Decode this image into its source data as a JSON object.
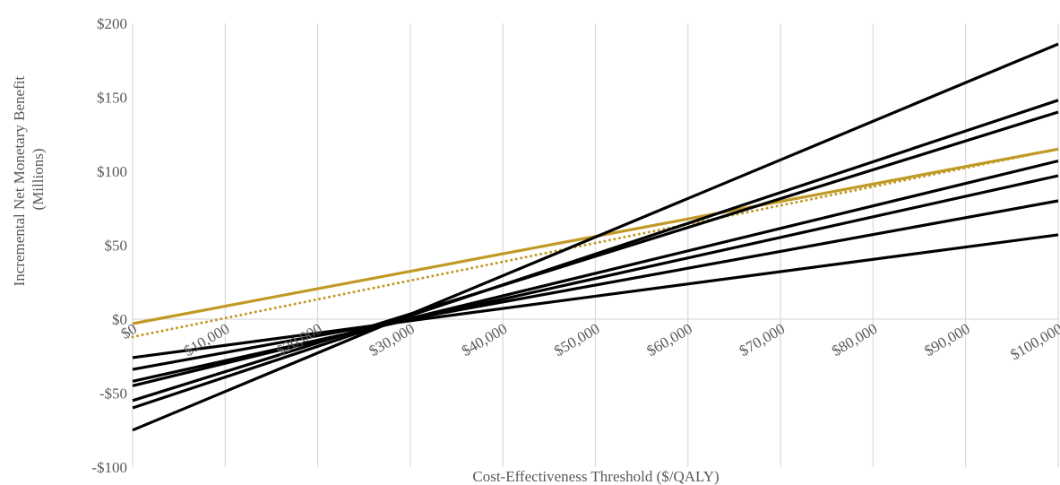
{
  "chart_data": {
    "type": "line",
    "xlabel": "Cost-Effectiveness Threshold ($/QALY)",
    "ylabel": "Incremental Net Monetary Benefit (Millions)",
    "ylabel_lines": [
      "Incremental Net Monetary Benefit",
      "(Millions)"
    ],
    "xlim": [
      0,
      100000
    ],
    "ylim": [
      -100,
      200
    ],
    "x_ticks": [
      {
        "value": 0,
        "label": "$0"
      },
      {
        "value": 10000,
        "label": "$10,000"
      },
      {
        "value": 20000,
        "label": "$20,000"
      },
      {
        "value": 30000,
        "label": "$30,000"
      },
      {
        "value": 40000,
        "label": "$40,000"
      },
      {
        "value": 50000,
        "label": "$50,000"
      },
      {
        "value": 60000,
        "label": "$60,000"
      },
      {
        "value": 70000,
        "label": "$70,000"
      },
      {
        "value": 80000,
        "label": "$80,000"
      },
      {
        "value": 90000,
        "label": "$90,000"
      },
      {
        "value": 100000,
        "label": "$100,000"
      }
    ],
    "y_ticks": [
      {
        "value": 200,
        "label": "$200"
      },
      {
        "value": 150,
        "label": "$150"
      },
      {
        "value": 100,
        "label": "$100"
      },
      {
        "value": 50,
        "label": "$50"
      },
      {
        "value": 0,
        "label": "$0"
      },
      {
        "value": -50,
        "label": "-$50"
      },
      {
        "value": -100,
        "label": "-$100"
      }
    ],
    "grid": "vertical",
    "legend": "none",
    "series": [
      {
        "color": "#c09a25",
        "style": "solid",
        "x": [
          0,
          100000
        ],
        "y": [
          -3,
          115
        ]
      },
      {
        "color": "#c09a25",
        "style": "dotted",
        "x": [
          0,
          100000
        ],
        "y": [
          -12,
          115
        ]
      },
      {
        "color": "#000000",
        "style": "solid",
        "x": [
          0,
          100000
        ],
        "y": [
          -75,
          186
        ]
      },
      {
        "color": "#000000",
        "style": "solid",
        "x": [
          0,
          100000
        ],
        "y": [
          -60,
          148
        ]
      },
      {
        "color": "#000000",
        "style": "solid",
        "x": [
          0,
          100000
        ],
        "y": [
          -55,
          140
        ]
      },
      {
        "color": "#000000",
        "style": "solid",
        "x": [
          0,
          100000
        ],
        "y": [
          -45,
          107
        ]
      },
      {
        "color": "#000000",
        "style": "solid",
        "x": [
          0,
          100000
        ],
        "y": [
          -42,
          97
        ]
      },
      {
        "color": "#000000",
        "style": "solid",
        "x": [
          0,
          100000
        ],
        "y": [
          -34,
          80
        ]
      },
      {
        "color": "#000000",
        "style": "solid",
        "x": [
          0,
          100000
        ],
        "y": [
          -26,
          57
        ]
      }
    ]
  }
}
